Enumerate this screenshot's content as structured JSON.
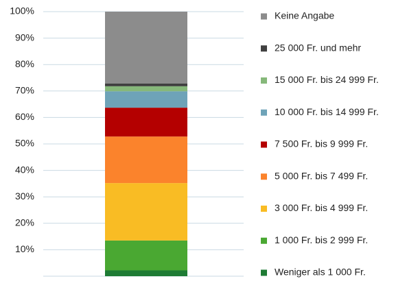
{
  "chart_data": {
    "type": "stacked-bar",
    "categories": [
      null
    ],
    "series": [
      {
        "name": "Weniger als 1 000 Fr.",
        "color": "#1e7b34",
        "values": [
          2.2
        ]
      },
      {
        "name": "1 000 Fr. bis 2 999 Fr.",
        "color": "#4aa832",
        "values": [
          11.3
        ]
      },
      {
        "name": "3 000 Fr. bis 4 999 Fr.",
        "color": "#f9bc24",
        "values": [
          21.7
        ]
      },
      {
        "name": "5 000 Fr. bis 7 499 Fr.",
        "color": "#fb832c",
        "values": [
          17.6
        ]
      },
      {
        "name": "7 500 Fr. bis 9 999 Fr.",
        "color": "#b40000",
        "values": [
          10.9
        ]
      },
      {
        "name": "10 000 Fr. bis 14 999 Fr.",
        "color": "#6ea3b8",
        "values": [
          6.2
        ]
      },
      {
        "name": "15 000 Fr. bis 24 999 Fr.",
        "color": "#86b87a",
        "values": [
          1.9
        ]
      },
      {
        "name": "25 000 Fr. und mehr",
        "color": "#404040",
        "values": [
          1.0
        ]
      },
      {
        "name": "Keine Angabe",
        "color": "#8c8c8c",
        "values": [
          27.2
        ]
      }
    ],
    "ylim": [
      0,
      100
    ],
    "yticks": [
      {
        "value": 10,
        "label": "10%"
      },
      {
        "value": 20,
        "label": "20%"
      },
      {
        "value": 30,
        "label": "30%"
      },
      {
        "value": 40,
        "label": "40%"
      },
      {
        "value": 50,
        "label": "50%"
      },
      {
        "value": 60,
        "label": "60%"
      },
      {
        "value": 70,
        "label": "70%"
      },
      {
        "value": 80,
        "label": "80%"
      },
      {
        "value": 90,
        "label": "90%"
      },
      {
        "value": 100,
        "label": "100%"
      }
    ],
    "grid": true,
    "legend": "right"
  }
}
